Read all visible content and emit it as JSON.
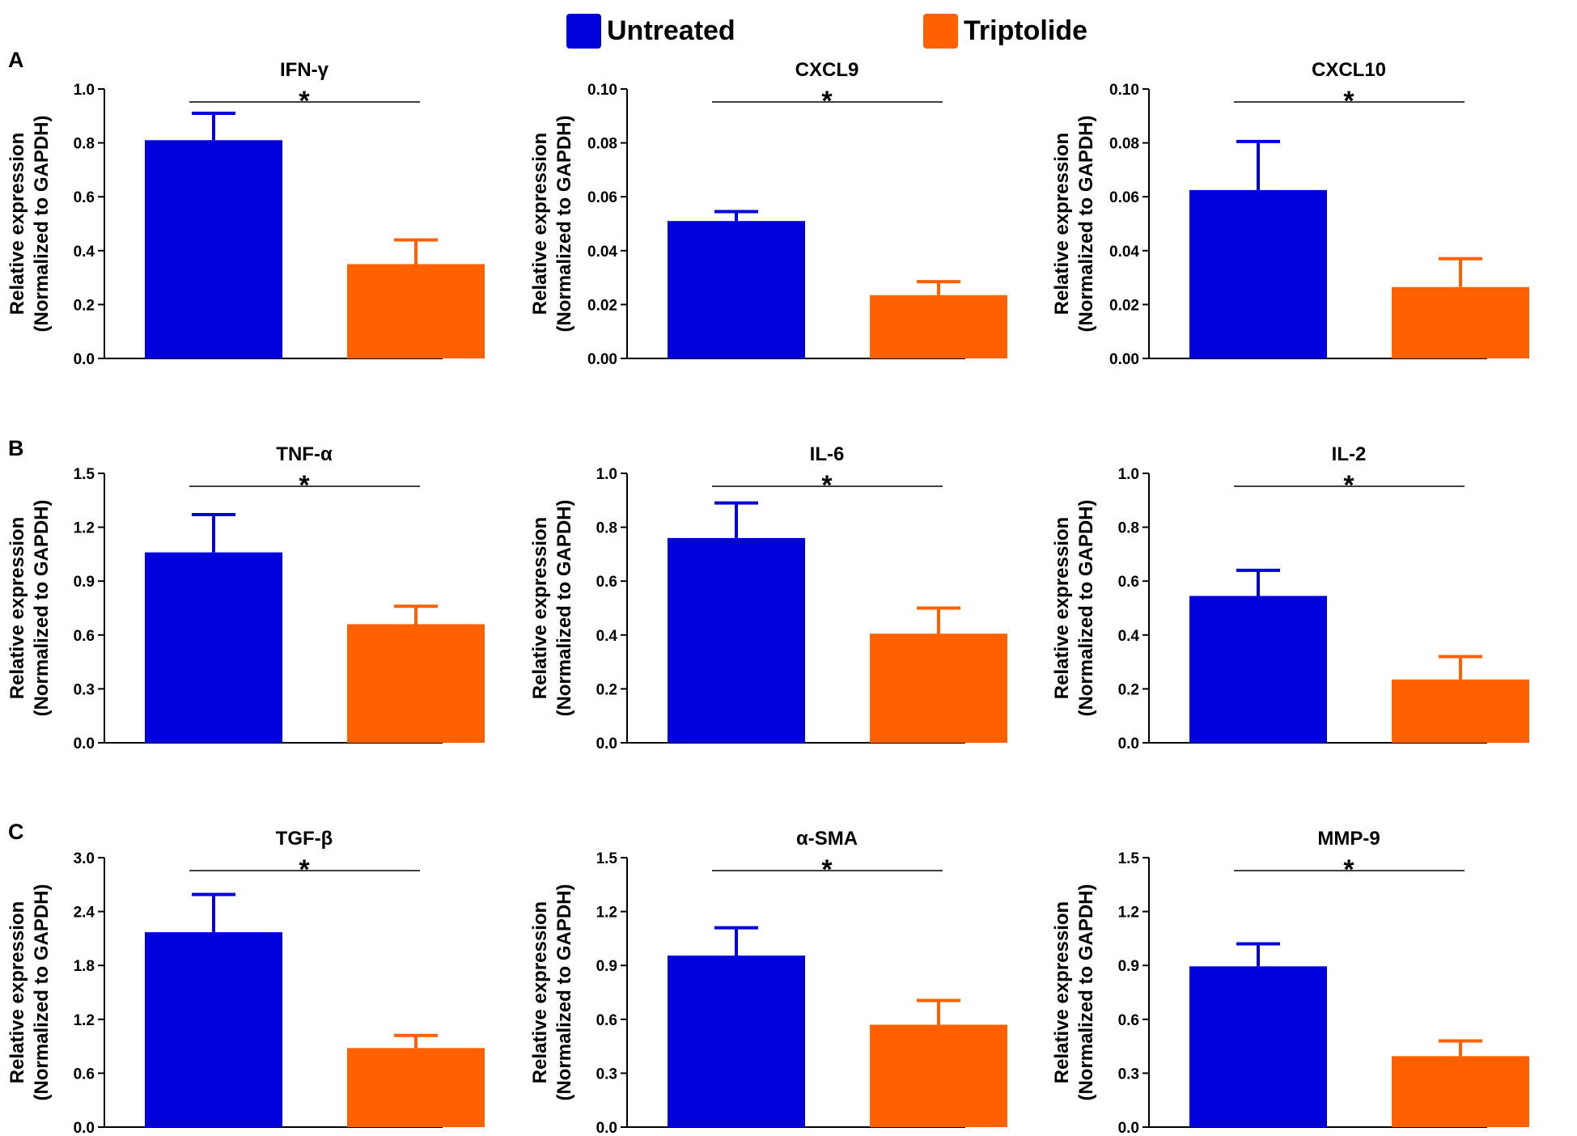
{
  "legend": {
    "series": [
      {
        "name": "Untreated",
        "color": "#0000DD"
      },
      {
        "name": "Triptolide",
        "color": "#FF6000"
      }
    ]
  },
  "panel_letters": [
    "A",
    "B",
    "C"
  ],
  "chart_data": [
    {
      "type": "bar",
      "panel": "A",
      "title": "IFN-γ",
      "ylabel": [
        "Relative expression",
        "(Normalized to GAPDH)"
      ],
      "categories": [
        "Untreated",
        "Triptolide"
      ],
      "values": [
        0.81,
        0.35
      ],
      "errors": [
        0.1,
        0.09
      ],
      "ylim": [
        0,
        1.0
      ],
      "yticks": [
        "0.0",
        "0.2",
        "0.4",
        "0.6",
        "0.8",
        "1.0"
      ],
      "significance": "*"
    },
    {
      "type": "bar",
      "panel": "A",
      "title": "CXCL9",
      "ylabel": [
        "Relative expression",
        "(Normalized to GAPDH)"
      ],
      "categories": [
        "Untreated",
        "Triptolide"
      ],
      "values": [
        0.051,
        0.0235
      ],
      "errors": [
        0.0035,
        0.005
      ],
      "ylim": [
        0,
        0.1
      ],
      "yticks": [
        "0.00",
        "0.02",
        "0.04",
        "0.06",
        "0.08",
        "0.10"
      ],
      "significance": "*"
    },
    {
      "type": "bar",
      "panel": "A",
      "title": "CXCL10",
      "ylabel": [
        "Relative expression",
        "(Normalized to GAPDH)"
      ],
      "categories": [
        "Untreated",
        "Triptolide"
      ],
      "values": [
        0.0625,
        0.0265
      ],
      "errors": [
        0.018,
        0.0105
      ],
      "ylim": [
        0,
        0.1
      ],
      "yticks": [
        "0.00",
        "0.02",
        "0.04",
        "0.06",
        "0.08",
        "0.10"
      ],
      "significance": "*"
    },
    {
      "type": "bar",
      "panel": "B",
      "title": "TNF-α",
      "ylabel": [
        "Relative expression",
        "(Normalized to GAPDH)"
      ],
      "categories": [
        "Untreated",
        "Triptolide"
      ],
      "values": [
        1.06,
        0.66
      ],
      "errors": [
        0.21,
        0.1
      ],
      "ylim": [
        0,
        1.5
      ],
      "yticks": [
        "0.0",
        "0.3",
        "0.6",
        "0.9",
        "1.2",
        "1.5"
      ],
      "significance": "*"
    },
    {
      "type": "bar",
      "panel": "B",
      "title": "IL-6",
      "ylabel": [
        "Relative expression",
        "(Normalized to GAPDH)"
      ],
      "categories": [
        "Untreated",
        "Triptolide"
      ],
      "values": [
        0.76,
        0.405
      ],
      "errors": [
        0.13,
        0.095
      ],
      "ylim": [
        0,
        1.0
      ],
      "yticks": [
        "0.0",
        "0.2",
        "0.4",
        "0.6",
        "0.8",
        "1.0"
      ],
      "significance": "*"
    },
    {
      "type": "bar",
      "panel": "B",
      "title": "IL-2",
      "ylabel": [
        "Relative expression",
        "(Normalized to GAPDH)"
      ],
      "categories": [
        "Untreated",
        "Triptolide"
      ],
      "values": [
        0.545,
        0.235
      ],
      "errors": [
        0.095,
        0.085
      ],
      "ylim": [
        0,
        1.0
      ],
      "yticks": [
        "0.0",
        "0.2",
        "0.4",
        "0.6",
        "0.8",
        "1.0"
      ],
      "significance": "*"
    },
    {
      "type": "bar",
      "panel": "C",
      "title": "TGF-β",
      "ylabel": [
        "Relative expression",
        "(Normalized to GAPDH)"
      ],
      "categories": [
        "Untreated",
        "Triptolide"
      ],
      "values": [
        2.17,
        0.88
      ],
      "errors": [
        0.42,
        0.14
      ],
      "ylim": [
        0,
        3.0
      ],
      "yticks": [
        "0.0",
        "0.6",
        "1.2",
        "1.8",
        "2.4",
        "3.0"
      ],
      "significance": "*"
    },
    {
      "type": "bar",
      "panel": "C",
      "title": "α-SMA",
      "ylabel": [
        "Relative expression",
        "(Normalized to GAPDH)"
      ],
      "categories": [
        "Untreated",
        "Triptolide"
      ],
      "values": [
        0.955,
        0.57
      ],
      "errors": [
        0.155,
        0.135
      ],
      "ylim": [
        0,
        1.5
      ],
      "yticks": [
        "0.0",
        "0.3",
        "0.6",
        "0.9",
        "1.2",
        "1.5"
      ],
      "significance": "*"
    },
    {
      "type": "bar",
      "panel": "C",
      "title": "MMP-9",
      "ylabel": [
        "Relative expression",
        "(Normalized to GAPDH)"
      ],
      "categories": [
        "Untreated",
        "Triptolide"
      ],
      "values": [
        0.895,
        0.395
      ],
      "errors": [
        0.125,
        0.085
      ],
      "ylim": [
        0,
        1.5
      ],
      "yticks": [
        "0.0",
        "0.3",
        "0.6",
        "0.9",
        "1.2",
        "1.5"
      ],
      "significance": "*"
    }
  ]
}
